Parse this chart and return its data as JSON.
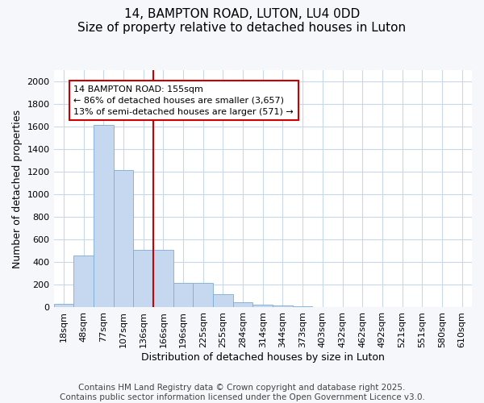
{
  "title": "14, BAMPTON ROAD, LUTON, LU4 0DD",
  "subtitle": "Size of property relative to detached houses in Luton",
  "xlabel": "Distribution of detached houses by size in Luton",
  "ylabel": "Number of detached properties",
  "categories": [
    "18sqm",
    "48sqm",
    "77sqm",
    "107sqm",
    "136sqm",
    "166sqm",
    "196sqm",
    "225sqm",
    "255sqm",
    "284sqm",
    "314sqm",
    "344sqm",
    "373sqm",
    "403sqm",
    "432sqm",
    "462sqm",
    "492sqm",
    "521sqm",
    "551sqm",
    "580sqm",
    "610sqm"
  ],
  "values": [
    30,
    460,
    1620,
    1215,
    510,
    510,
    220,
    215,
    115,
    45,
    25,
    15,
    8,
    3,
    2,
    2,
    1,
    1,
    0,
    0,
    0
  ],
  "bar_color": "#c5d8f0",
  "bar_edge_color": "#7aadd4",
  "vline_x_index": 5,
  "vline_color": "#cc0000",
  "annotation_text": "14 BAMPTON ROAD: 155sqm\n← 86% of detached houses are smaller (3,657)\n13% of semi-detached houses are larger (571) →",
  "annotation_box_facecolor": "#ffffff",
  "annotation_box_edgecolor": "#cc0000",
  "ylim": [
    0,
    2100
  ],
  "yticks": [
    0,
    200,
    400,
    600,
    800,
    1000,
    1200,
    1400,
    1600,
    1800,
    2000
  ],
  "fig_facecolor": "#f5f7fa",
  "plot_facecolor": "#ffffff",
  "grid_color": "#c8d8e8",
  "title_fontsize": 11,
  "axis_label_fontsize": 9,
  "tick_fontsize": 8,
  "annotation_fontsize": 8,
  "footer_fontsize": 7.5,
  "footer": "Contains HM Land Registry data © Crown copyright and database right 2025.\nContains public sector information licensed under the Open Government Licence v3.0."
}
